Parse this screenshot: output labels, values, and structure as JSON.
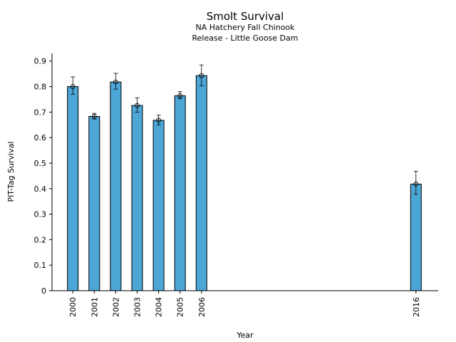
{
  "chart_data": {
    "type": "bar",
    "title": "Smolt Survival",
    "subtitle": [
      "NA Hatchery Fall Chinook",
      "Release - Little Goose Dam"
    ],
    "xlabel": "Year",
    "ylabel": "PIT-Tag Survival",
    "x": [
      2000,
      2001,
      2002,
      2003,
      2004,
      2005,
      2006,
      2016
    ],
    "categories": [
      "2000",
      "2001",
      "2002",
      "2003",
      "2004",
      "2005",
      "2006",
      "2016"
    ],
    "values": [
      0.8,
      0.683,
      0.818,
      0.726,
      0.668,
      0.764,
      0.843,
      0.418
    ],
    "error_low": [
      0.77,
      0.673,
      0.79,
      0.7,
      0.65,
      0.753,
      0.803,
      0.378
    ],
    "error_high": [
      0.838,
      0.695,
      0.852,
      0.756,
      0.688,
      0.78,
      0.885,
      0.468
    ],
    "ylim": [
      0,
      0.93
    ],
    "yticks": [
      0,
      0.1,
      0.2,
      0.3,
      0.4,
      0.5,
      0.6,
      0.7,
      0.8,
      0.9
    ],
    "ytick_labels": [
      "0",
      "0.1",
      "0.2",
      "0.3",
      "0.4",
      "0.5",
      "0.6",
      "0.7",
      "0.8",
      "0.9"
    ],
    "grid": false,
    "colors": {
      "bar": "#4ca6d6",
      "edge": "#000000"
    }
  }
}
